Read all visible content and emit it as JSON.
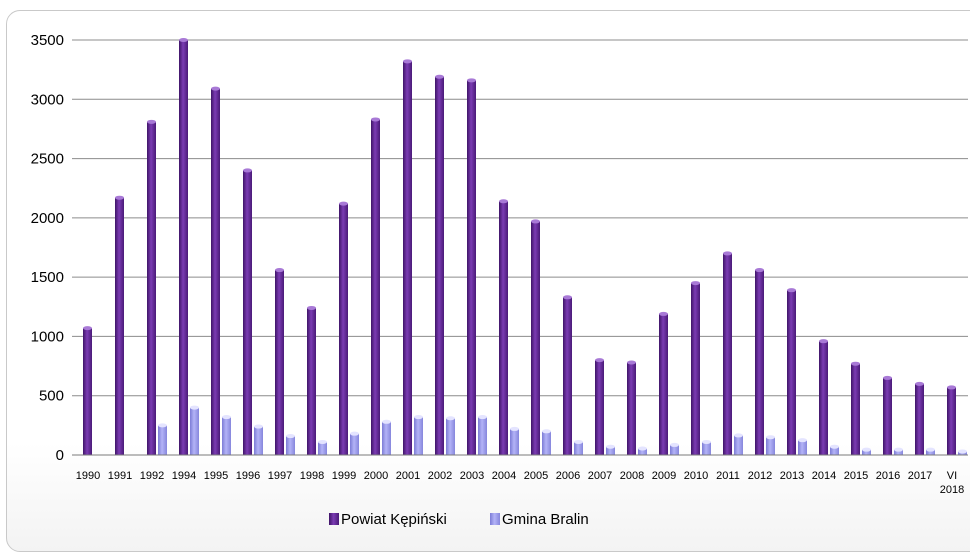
{
  "chart_data": {
    "type": "bar",
    "title": "",
    "xlabel": "",
    "ylabel": "",
    "ylim": [
      0,
      3500
    ],
    "yticks": [
      0,
      500,
      1000,
      1500,
      2000,
      2500,
      3000,
      3500
    ],
    "grid": true,
    "legend_position": "bottom",
    "categories": [
      "1990",
      "1991",
      "1992",
      "1994",
      "1995",
      "1996",
      "1997",
      "1998",
      "1999",
      "2000",
      "2001",
      "2002",
      "2003",
      "2004",
      "2005",
      "2006",
      "2007",
      "2008",
      "2009",
      "2010",
      "2011",
      "2012",
      "2013",
      "2014",
      "2015",
      "2016",
      "2017",
      "VI 2018"
    ],
    "series": [
      {
        "name": "Powiat Kępiński",
        "color": "#6b2fa0",
        "values": [
          1070,
          2170,
          2810,
          3500,
          3090,
          2400,
          1560,
          1240,
          2120,
          2830,
          3320,
          3190,
          3160,
          2140,
          1970,
          1330,
          800,
          780,
          1190,
          1450,
          1700,
          1560,
          1390,
          960,
          770,
          650,
          600,
          570
        ]
      },
      {
        "name": "Gmina Bralin",
        "color": "#9f9ff0",
        "values": [
          0,
          0,
          250,
          400,
          320,
          240,
          160,
          110,
          180,
          280,
          320,
          310,
          320,
          220,
          200,
          110,
          70,
          55,
          85,
          110,
          165,
          150,
          125,
          70,
          45,
          45,
          45,
          30
        ]
      }
    ]
  }
}
